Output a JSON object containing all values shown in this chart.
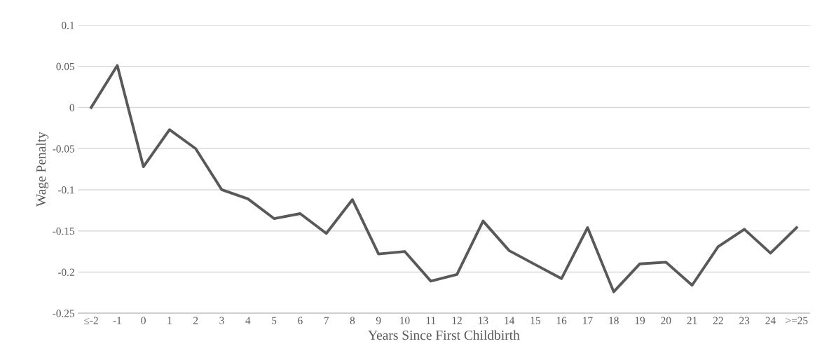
{
  "chart_data": {
    "type": "line",
    "xlabel": "Years Since First Childbirth",
    "ylabel": "Wage Penalty",
    "categories": [
      "≤-2",
      "-1",
      "0",
      "1",
      "2",
      "3",
      "4",
      "5",
      "6",
      "7",
      "8",
      "9",
      "10",
      "11",
      "12",
      "13",
      "14",
      "15",
      "16",
      "17",
      "18",
      "19",
      "20",
      "21",
      "22",
      "23",
      "24",
      ">=25"
    ],
    "series": [
      {
        "color": "#595959",
        "values": [
          0,
          0.051,
          -0.072,
          -0.027,
          -0.05,
          -0.1,
          -0.111,
          -0.135,
          -0.129,
          -0.153,
          -0.112,
          -0.178,
          -0.175,
          -0.211,
          -0.203,
          -0.138,
          -0.174,
          -0.191,
          -0.208,
          -0.146,
          -0.224,
          -0.19,
          -0.188,
          -0.216,
          -0.169,
          -0.148,
          -0.177,
          -0.146
        ]
      }
    ],
    "ylim": [
      -0.25,
      0.1
    ],
    "yticks": [
      -0.25,
      -0.2,
      -0.15,
      -0.1,
      -0.05,
      0,
      0.05,
      0.1
    ],
    "grid": "y",
    "marker": "none",
    "line_style": "solid"
  }
}
